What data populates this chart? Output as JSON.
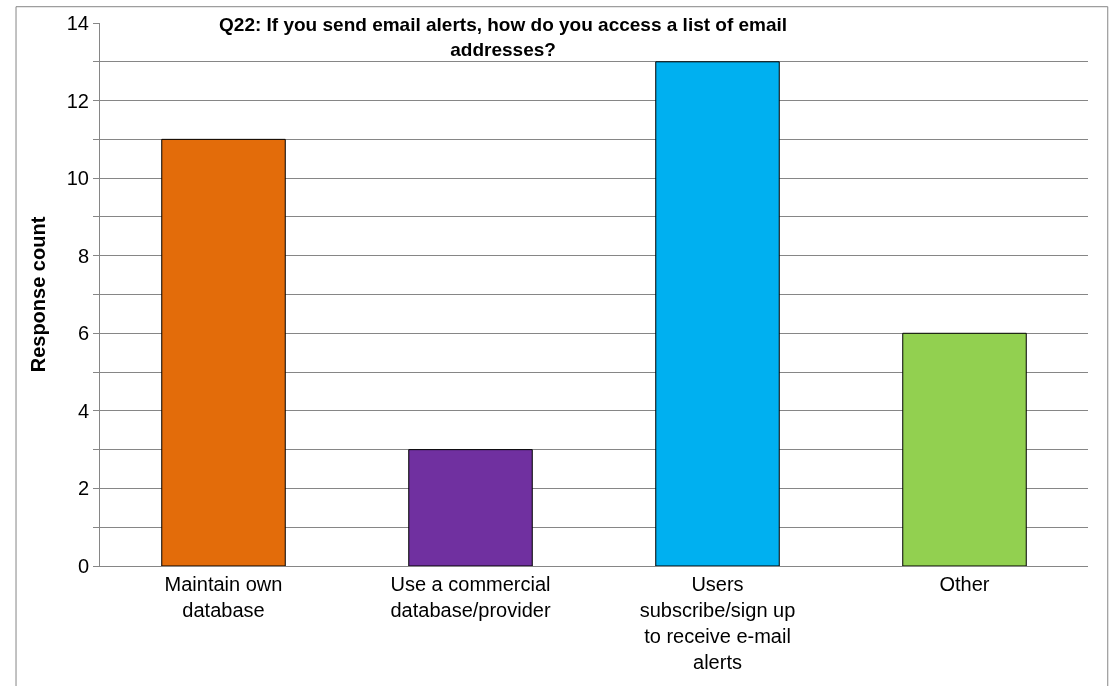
{
  "chart_data": {
    "type": "bar",
    "title": "Q22: If you send email alerts, how do you access a list of email addresses?",
    "ylabel": "Response count",
    "categories": [
      "Maintain own database",
      "Use a commercial database/provider",
      "Users subscribe/sign up to receive e-mail alerts",
      "Other"
    ],
    "values": [
      11,
      3,
      13,
      6
    ],
    "colors": [
      "#e36c0a",
      "#7030a0",
      "#00b0f0",
      "#92d050"
    ],
    "ylim": [
      0,
      14
    ],
    "yticks": [
      0,
      {
        "value": 1,
        "label": null
      },
      2,
      {
        "value": 3,
        "label": null
      },
      4,
      {
        "value": 5,
        "label": null
      },
      6,
      {
        "value": 7,
        "label": null
      },
      8,
      {
        "value": 9,
        "label": null
      },
      10,
      {
        "value": 11,
        "label": null
      },
      12,
      {
        "value": 13,
        "label": null
      },
      14
    ],
    "grid": "y",
    "legend": false
  }
}
